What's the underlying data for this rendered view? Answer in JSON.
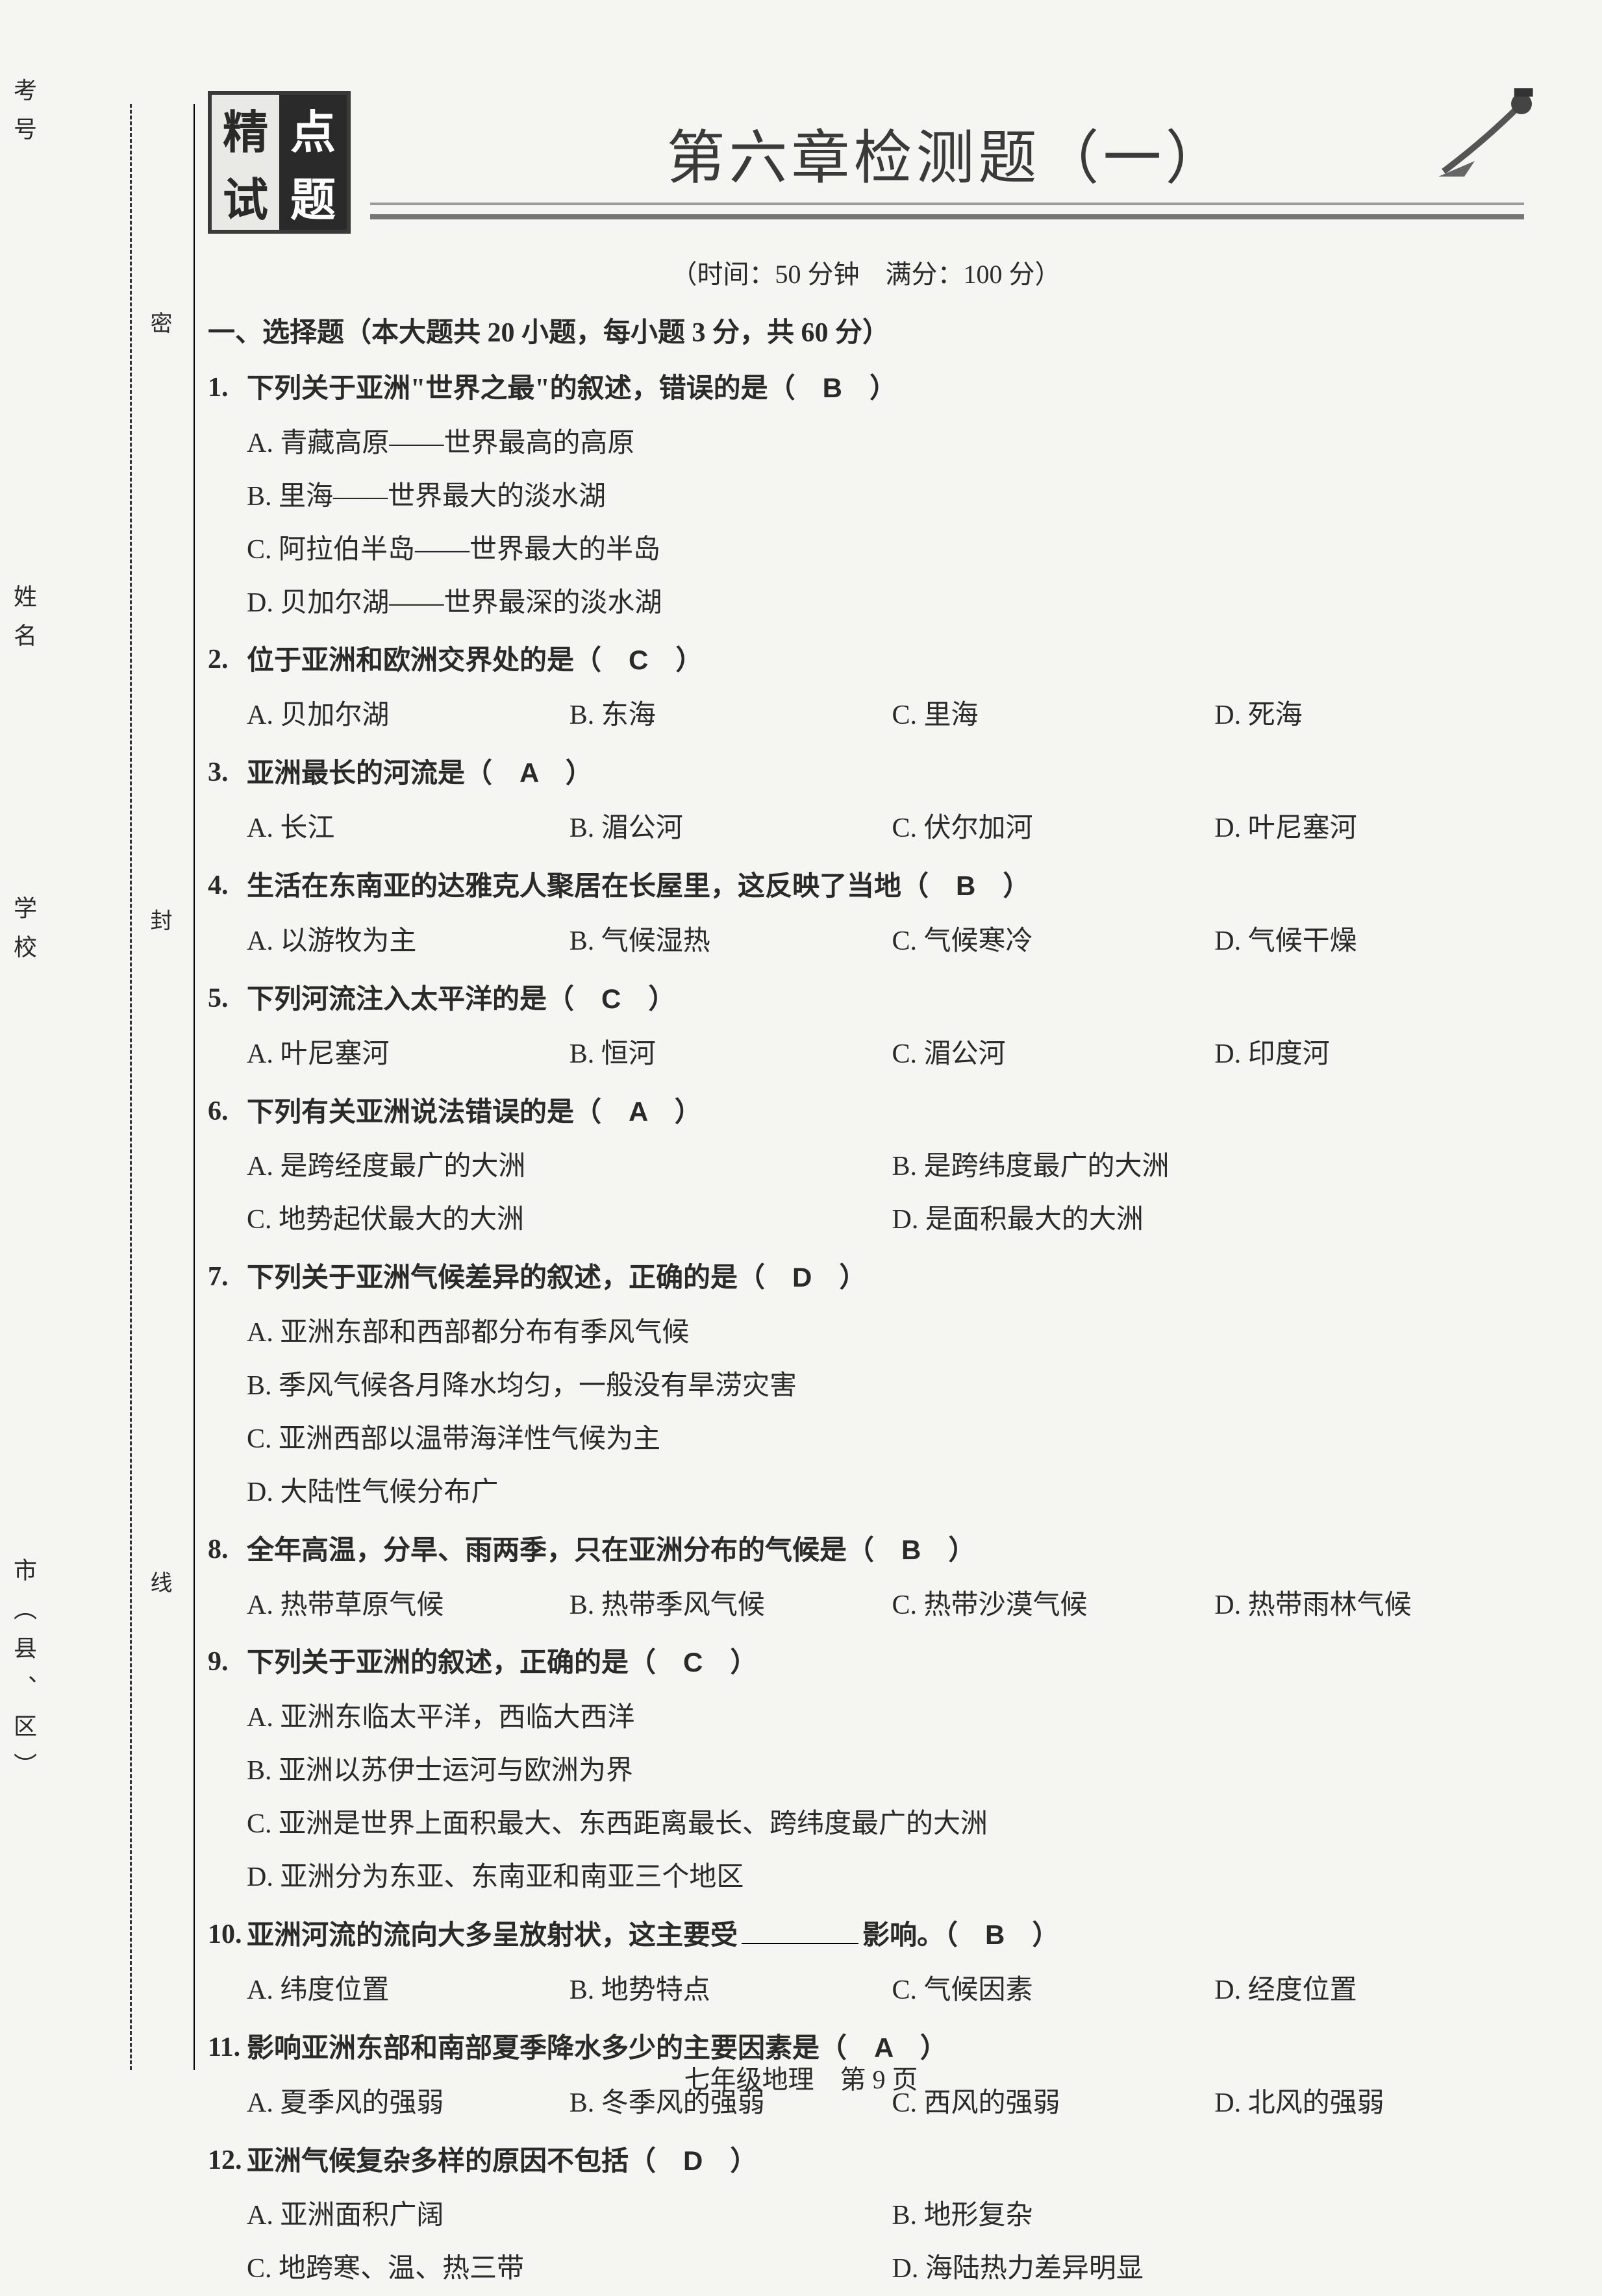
{
  "colors": {
    "page_bg": "#f5f5f2",
    "text": "#2a2a2a",
    "logo_dark": "#2a2a2a",
    "logo_light": "#e9e9e6",
    "rule": "#777777"
  },
  "typography": {
    "body_family": "SimSun",
    "title_family": "KaiTi",
    "title_fontsize_pt": 54,
    "body_fontsize_pt": 25,
    "line_height": 1.95
  },
  "logo": {
    "cells": [
      "精",
      "点",
      "试",
      "题"
    ],
    "dark_cells": [
      1,
      3
    ]
  },
  "title": "第六章检测题（一）",
  "meta": "（时间：50 分钟　满分：100 分）",
  "section1_head": "一、选择题（本大题共 20 小题，每小题 3 分，共 60 分）",
  "side": {
    "kaohao": "考号",
    "xingming": "姓名",
    "xuexiao": "学校",
    "shixian": "市（县、区）",
    "mi": "密",
    "feng": "封",
    "xian": "线"
  },
  "questions": [
    {
      "num": "1.",
      "stem": "下列关于亚洲\"世界之最\"的叙述，错误的是（",
      "ans": "B",
      "tail": "）",
      "layout": "stack",
      "opts": [
        "A. 青藏高原——世界最高的高原",
        "B. 里海——世界最大的淡水湖",
        "C. 阿拉伯半岛——世界最大的半岛",
        "D. 贝加尔湖——世界最深的淡水湖"
      ]
    },
    {
      "num": "2.",
      "stem": "位于亚洲和欧洲交界处的是（",
      "ans": "C",
      "tail": "）",
      "layout": "row4",
      "opts": [
        "A. 贝加尔湖",
        "B. 东海",
        "C. 里海",
        "D. 死海"
      ]
    },
    {
      "num": "3.",
      "stem": "亚洲最长的河流是（",
      "ans": "A",
      "tail": "）",
      "layout": "row4",
      "opts": [
        "A. 长江",
        "B. 湄公河",
        "C. 伏尔加河",
        "D. 叶尼塞河"
      ]
    },
    {
      "num": "4.",
      "stem": "生活在东南亚的达雅克人聚居在长屋里，这反映了当地（",
      "ans": "B",
      "tail": "）",
      "layout": "row4",
      "opts": [
        "A. 以游牧为主",
        "B. 气候湿热",
        "C. 气候寒冷",
        "D. 气候干燥"
      ]
    },
    {
      "num": "5.",
      "stem": "下列河流注入太平洋的是（",
      "ans": "C",
      "tail": "）",
      "layout": "row4",
      "opts": [
        "A. 叶尼塞河",
        "B. 恒河",
        "C. 湄公河",
        "D. 印度河"
      ]
    },
    {
      "num": "6.",
      "stem": "下列有关亚洲说法错误的是（",
      "ans": "A",
      "tail": "）",
      "layout": "row2",
      "opts": [
        "A. 是跨经度最广的大洲",
        "B. 是跨纬度最广的大洲",
        "C. 地势起伏最大的大洲",
        "D. 是面积最大的大洲"
      ]
    },
    {
      "num": "7.",
      "stem": "下列关于亚洲气候差异的叙述，正确的是（",
      "ans": "D",
      "tail": "）",
      "layout": "stack",
      "opts": [
        "A. 亚洲东部和西部都分布有季风气候",
        "B. 季风气候各月降水均匀，一般没有旱涝灾害",
        "C. 亚洲西部以温带海洋性气候为主",
        "D. 大陆性气候分布广"
      ]
    },
    {
      "num": "8.",
      "stem": "全年高温，分旱、雨两季，只在亚洲分布的气候是（",
      "ans": "B",
      "tail": "）",
      "layout": "row4",
      "opts": [
        "A. 热带草原气候",
        "B. 热带季风气候",
        "C. 热带沙漠气候",
        "D. 热带雨林气候"
      ]
    },
    {
      "num": "9.",
      "stem": "下列关于亚洲的叙述，正确的是（",
      "ans": "C",
      "tail": "）",
      "layout": "stack",
      "opts": [
        "A. 亚洲东临太平洋，西临大西洋",
        "B. 亚洲以苏伊士运河与欧洲为界",
        "C. 亚洲是世界上面积最大、东西距离最长、跨纬度最广的大洲",
        "D. 亚洲分为东亚、东南亚和南亚三个地区"
      ]
    },
    {
      "num": "10.",
      "stem_pre": "亚洲河流的流向大多呈放射状，这主要受",
      "stem_post": "影响。（",
      "ans": "B",
      "tail": "）",
      "has_blank": true,
      "layout": "row4",
      "opts": [
        "A. 纬度位置",
        "B. 地势特点",
        "C. 气候因素",
        "D. 经度位置"
      ]
    },
    {
      "num": "11.",
      "stem": "影响亚洲东部和南部夏季降水多少的主要因素是（",
      "ans": "A",
      "tail": "）",
      "layout": "row4",
      "opts": [
        "A. 夏季风的强弱",
        "B. 冬季风的强弱",
        "C. 西风的强弱",
        "D. 北风的强弱"
      ]
    },
    {
      "num": "12.",
      "stem": "亚洲气候复杂多样的原因不包括（",
      "ans": "D",
      "tail": "）",
      "layout": "row2",
      "opts": [
        "A. 亚洲面积广阔",
        "B. 地形复杂",
        "C. 地跨寒、温、热三带",
        "D. 海陆热力差异明显"
      ]
    }
  ],
  "footer": "七年级地理　第 9 页"
}
